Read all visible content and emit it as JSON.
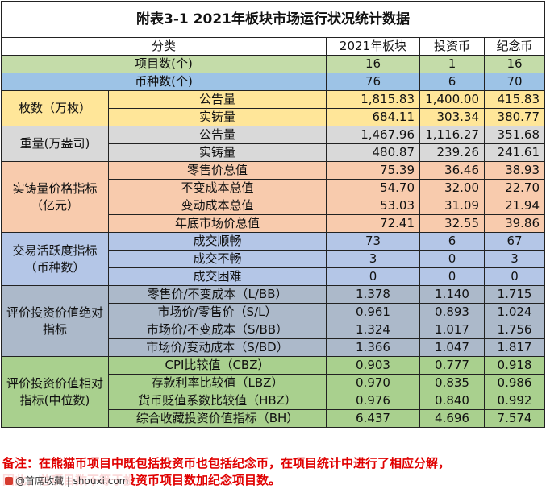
{
  "title": "附表3-1  2021年板块市场运行状况统计数据",
  "headers": [
    "分类",
    "2021年板块",
    "投资币",
    "纪念币"
  ],
  "items": {
    "label": "项目数(个)",
    "v": [
      "16",
      "1",
      "16"
    ]
  },
  "types": {
    "label": "币种数(个)",
    "v": [
      "76",
      "6",
      "70"
    ]
  },
  "groups": {
    "g1": {
      "label": "枚数（万枚）",
      "rows": [
        {
          "label": "公告量",
          "v": [
            "1,815.83",
            "1,400.00",
            "415.83"
          ]
        },
        {
          "label": "实铸量",
          "v": [
            "684.11",
            "303.34",
            "380.77"
          ]
        }
      ]
    },
    "g2": {
      "label": "重量(万盎司)",
      "rows": [
        {
          "label": "公告量",
          "v": [
            "1,467.96",
            "1,116.27",
            "351.68"
          ]
        },
        {
          "label": "实铸量",
          "v": [
            "480.87",
            "239.26",
            "241.61"
          ]
        }
      ]
    },
    "g3": {
      "label": "实铸量价格指标（亿元）",
      "rows": [
        {
          "label": "零售价总值",
          "v": [
            "75.39",
            "36.46",
            "38.93"
          ]
        },
        {
          "label": "不变成本总值",
          "v": [
            "54.70",
            "32.00",
            "22.70"
          ]
        },
        {
          "label": "变动成本总值",
          "v": [
            "53.03",
            "31.09",
            "21.94"
          ]
        },
        {
          "label": "年底市场价总值",
          "v": [
            "72.41",
            "32.55",
            "39.86"
          ]
        }
      ]
    },
    "g4": {
      "label": "交易活跃度指标（币种数）",
      "rows": [
        {
          "label": "成交顺畅",
          "v": [
            "73",
            "6",
            "67"
          ]
        },
        {
          "label": "成交不畅",
          "v": [
            "3",
            "0",
            "3"
          ]
        },
        {
          "label": "成交困难",
          "v": [
            "0",
            "0",
            "0"
          ]
        }
      ]
    },
    "g5": {
      "label": "评价投资价值绝对指标",
      "rows": [
        {
          "label": "零售价/不变成本（L/BB）",
          "v": [
            "1.378",
            "1.140",
            "1.715"
          ]
        },
        {
          "label": "市场价/零售价（S/L）",
          "v": [
            "0.961",
            "0.893",
            "1.024"
          ]
        },
        {
          "label": "市场价/不变成本（S/BB）",
          "v": [
            "1.324",
            "1.017",
            "1.756"
          ]
        },
        {
          "label": "市场价/变动成本（S/BD）",
          "v": [
            "1.366",
            "1.047",
            "1.817"
          ]
        }
      ]
    },
    "g6": {
      "label": "评价投资价值相对指标(中位数)",
      "rows": [
        {
          "label": "CPI比较值（CBZ）",
          "v": [
            "0.903",
            "0.777",
            "0.918"
          ]
        },
        {
          "label": "存款利率比较值（LBZ）",
          "v": [
            "0.970",
            "0.835",
            "0.986"
          ]
        },
        {
          "label": "货币贬值系数比较值（HBZ）",
          "v": [
            "0.976",
            "0.840",
            "0.992"
          ]
        },
        {
          "label": "综合收藏投资价值指标（BH）",
          "v": [
            "6.437",
            "4.696",
            "7.574"
          ]
        }
      ]
    }
  },
  "note": {
    "line1": "备注：在熊猫币项目中既包括投资币也包括纪念币，在项目统计中进行了相应分解，",
    "line2": "因此，总项目数不等于投资币项目数加纪念项目数。"
  },
  "watermark": {
    "text": "@首席收藏 | shouxi.com"
  },
  "colors": {
    "green": "#c4dca9",
    "blue": "#9dc3e6",
    "yellow": "#ffe699",
    "gray": "#d9d9d9",
    "orange": "#f8cbad",
    "lavender": "#b4c6e7",
    "slate": "#acb9ca",
    "lime": "#a9d08e",
    "note": "#e00000"
  }
}
